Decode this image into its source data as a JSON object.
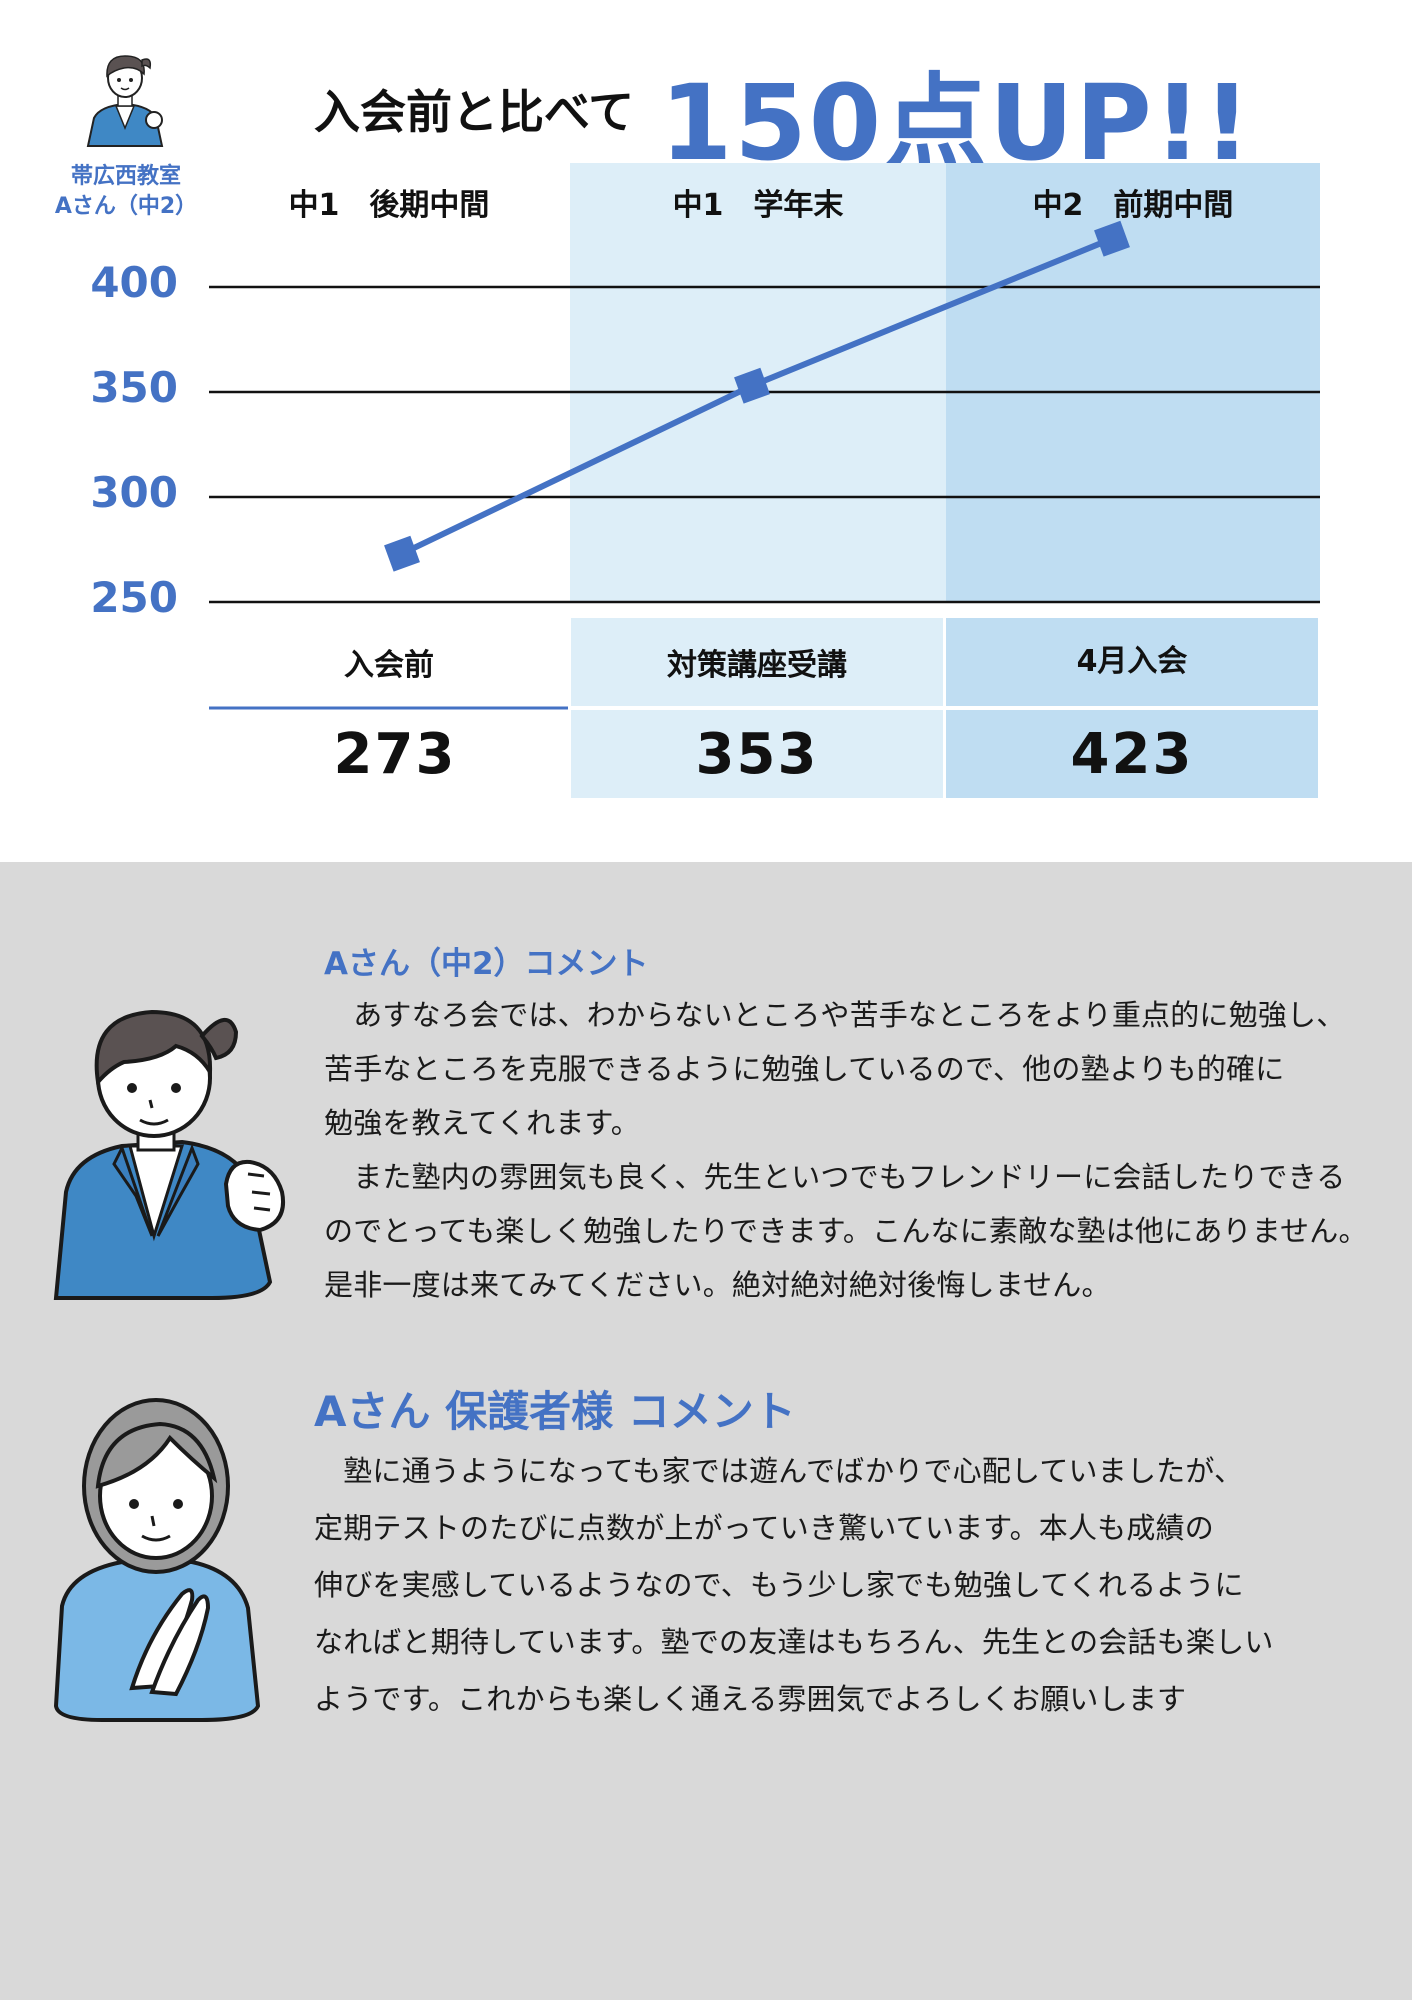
{
  "header": {
    "title_small": "入会前と比べて",
    "title_big": "150点UP!!"
  },
  "student": {
    "school": "帯広西教室",
    "name": "Aさん（中2）"
  },
  "chart_data": {
    "type": "line",
    "categories": [
      "中1　後期中間",
      "中1　学年末",
      "中2　前期中間"
    ],
    "row_labels": [
      "入会前",
      "対策講座受講",
      "4月入会"
    ],
    "values": [
      273,
      353,
      423
    ],
    "series": [
      {
        "values": [
          273,
          353,
          423
        ]
      }
    ],
    "ylim": [
      250,
      400
    ],
    "yticks": [
      "400",
      "350",
      "300",
      "250"
    ],
    "grid": true,
    "colors": {
      "line": "#4472c4",
      "column_2_bg": "#ddeef8",
      "column_3_bg": "#bfddf2"
    }
  },
  "table": {
    "scores": [
      "273",
      "353",
      "423"
    ]
  },
  "comments": {
    "student": {
      "title": "Aさん（中2）コメント",
      "lines": [
        "　あすなろ会では、わからないところや苦手なところをより重点的に勉強し、",
        "苦手なところを克服できるように勉強しているので、他の塾よりも的確に",
        "勉強を教えてくれます。",
        "　また塾内の雰囲気も良く、先生といつでもフレンドリーに会話したりできる",
        "のでとっても楽しく勉強したりできます。こんなに素敵な塾は他にありません。",
        "是非一度は来てみてください。絶対絶対絶対後悔しません。"
      ]
    },
    "parent": {
      "title": "Aさん 保護者様 コメント",
      "lines": [
        "　塾に通うようになっても家では遊んでばかりで心配していましたが、",
        "定期テストのたびに点数が上がっていき驚いています。本人も成績の",
        "伸びを実感しているようなので、もう少し家でも勉強してくれるように",
        "なればと期待しています。塾での友達はもちろん、先生との会話も楽しい",
        "ようです。これからも楽しく通える雰囲気でよろしくお願いします"
      ]
    }
  },
  "icons": {
    "small_student": "student-avatar-icon",
    "student": "student-illustration-icon",
    "parent": "parent-illustration-icon"
  }
}
